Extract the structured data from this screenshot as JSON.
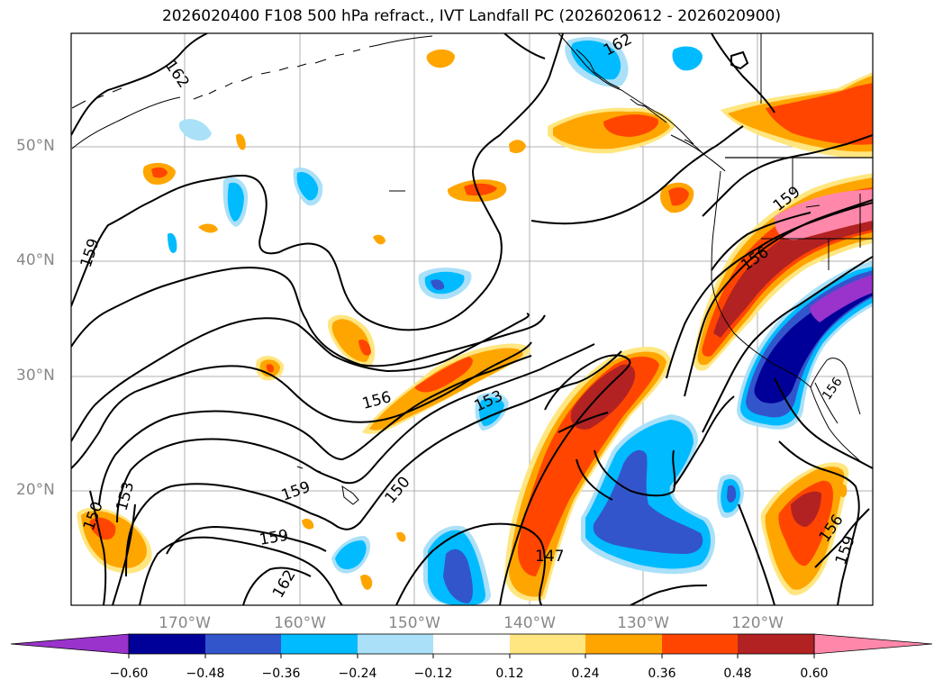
{
  "title": "2026020400 F108 500 hPa refract., IVT Landfall PC (2026020612 - 2026020900)",
  "map": {
    "lat_labels": [
      "50°N",
      "40°N",
      "30°N",
      "20°N"
    ],
    "lon_labels": [
      "170°W",
      "160°W",
      "150°W",
      "140°W",
      "130°W",
      "120°W"
    ],
    "contour_labels": [
      "162",
      "162",
      "159",
      "159",
      "156",
      "156",
      "153",
      "153",
      "150",
      "150",
      "159",
      "159",
      "162",
      "147",
      "156",
      "159",
      "156"
    ]
  },
  "colorbar": {
    "ticks": [
      "−0.60",
      "−0.48",
      "−0.36",
      "−0.24",
      "−0.12",
      "0.12",
      "0.24",
      "0.36",
      "0.48",
      "0.60"
    ],
    "colors": [
      "#9933cc",
      "#000099",
      "#3355cc",
      "#00bbff",
      "#aae0f8",
      "#ffffff",
      "#ffe680",
      "#ffa500",
      "#ff4500",
      "#b22222",
      "#ff88aa"
    ]
  }
}
